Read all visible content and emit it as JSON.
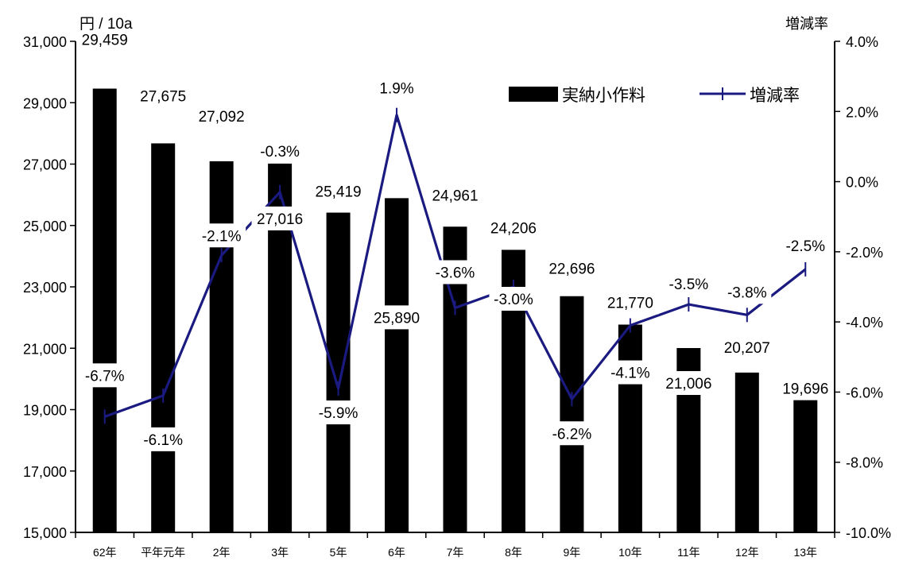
{
  "chart_data": {
    "type": "bar",
    "categories": [
      "62年",
      "平年元年",
      "2年",
      "3年",
      "5年",
      "6年",
      "7年",
      "8年",
      "9年",
      "10年",
      "11年",
      "12年",
      "13年"
    ],
    "series": [
      {
        "name": "実納小作料",
        "type": "bar",
        "axis": "left",
        "values": [
          29459,
          27675,
          27092,
          27016,
          25419,
          25890,
          24961,
          24206,
          22696,
          21770,
          21006,
          20207,
          19696
        ],
        "labels": [
          "29,459",
          "27,675",
          "27,092",
          "27,016",
          "25,419",
          "25,890",
          "24,961",
          "24,206",
          "22,696",
          "21,770",
          "21,006",
          "20,207",
          "19,696"
        ]
      },
      {
        "name": "増減率",
        "type": "line",
        "axis": "right",
        "values": [
          -6.7,
          -6.1,
          -2.1,
          -0.3,
          -5.9,
          1.9,
          -3.6,
          -3.0,
          -6.2,
          -4.1,
          -3.5,
          -3.8,
          -2.5
        ],
        "labels": [
          "-6.7%",
          "-6.1%",
          "-2.1%",
          "-0.3%",
          "-5.9%",
          "1.9%",
          "-3.6%",
          "-3.0%",
          "-6.2%",
          "-4.1%",
          "-3.5%",
          "-3.8%",
          "-2.5%"
        ]
      }
    ],
    "left_axis": {
      "unit_label": "円 / 10a",
      "ylim": [
        15000,
        31000
      ],
      "ticks": [
        15000,
        17000,
        19000,
        21000,
        23000,
        25000,
        27000,
        29000,
        31000
      ],
      "tick_labels": [
        "15,000",
        "17,000",
        "19,000",
        "21,000",
        "23,000",
        "25,000",
        "27,000",
        "29,000",
        "31,000"
      ]
    },
    "right_axis": {
      "unit_label": "増減率",
      "ylim": [
        -10,
        4
      ],
      "ticks": [
        -10,
        -8,
        -6,
        -4,
        -2,
        0,
        2,
        4
      ],
      "tick_labels": [
        "-10.0%",
        "-8.0%",
        "-6.0%",
        "-4.0%",
        "-2.0%",
        "0.0%",
        "2.0%",
        "4.0%"
      ]
    },
    "legend": {
      "placement": "top-right",
      "entries": [
        "実納小作料",
        "増減率"
      ]
    },
    "colors": {
      "bar": "#000000",
      "line": "#1a1a80",
      "label_bg": "#ffffff"
    },
    "grid": false
  }
}
